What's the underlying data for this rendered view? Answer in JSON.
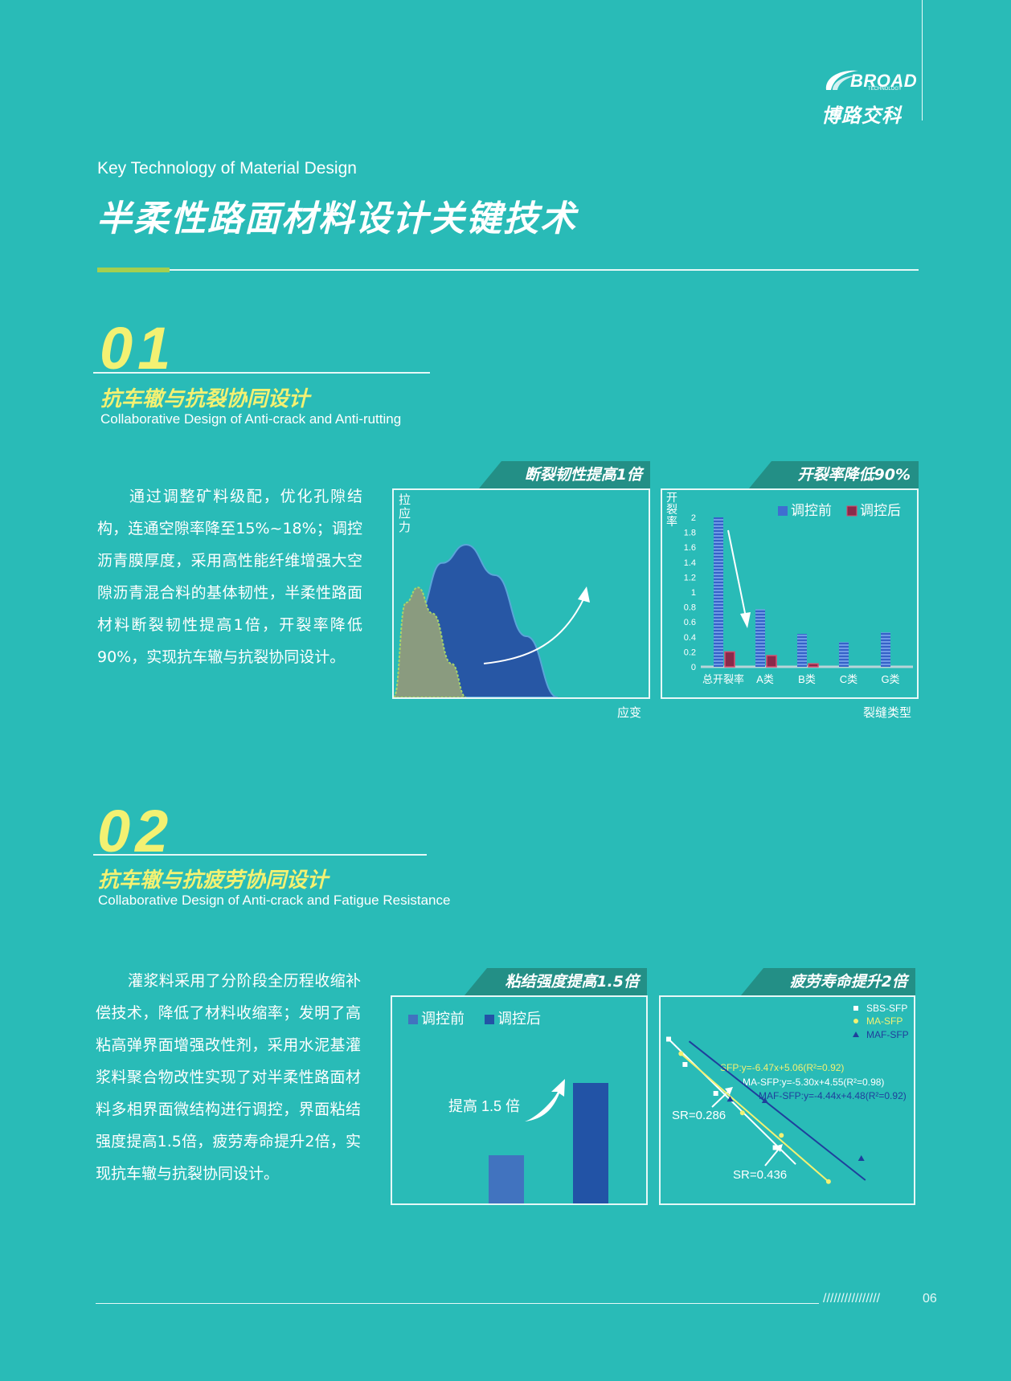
{
  "brand": {
    "name_en": "BROAD",
    "name_sub": "TECHNOLOGY",
    "name_cn": "博路交科"
  },
  "header": {
    "subtitle_en": "Key Technology of Material Design",
    "title_cn": "半柔性路面材料设计关键技术"
  },
  "section1": {
    "number": "01",
    "title_cn": "抗车辙与抗裂协同设计",
    "title_en": "Collaborative Design of Anti-crack and Anti-rutting",
    "paragraph": "通过调整矿料级配，优化孔隙结构，连通空隙率降至15%~18%；调控沥青膜厚度，采用高性能纤维增强大空隙沥青混合料的基体韧性，半柔性路面材料断裂韧性提高1倍，开裂率降低90%，实现抗车辙与抗裂协同设计。",
    "chart1": {
      "tag": "断裂韧性提高1倍",
      "ylabel": "拉应力",
      "xlabel": "应变",
      "colors": {
        "after": "#2757a5",
        "before": "#8a9b7f",
        "edge": "#a7d66a"
      }
    },
    "chart2": {
      "tag": "开裂率降低90%",
      "ylabel": "开裂率",
      "xlabel": "裂缝类型",
      "legend": [
        "调控前",
        "调控后"
      ]
    }
  },
  "section2": {
    "number": "02",
    "title_cn": "抗车辙与抗疲劳协同设计",
    "title_en": "Collaborative Design of Anti-crack and Fatigue Resistance",
    "paragraph": "灌浆料采用了分阶段全历程收缩补偿技术，降低了材料收缩率；发明了高粘高弹界面增强改性剂，采用水泥基灌浆料聚合物改性实现了对半柔性路面材料多相界面微结构进行调控，界面粘结强度提高1.5倍，疲劳寿命提升2倍，实现抗车辙与抗裂协同设计。",
    "chart3": {
      "tag": "粘结强度提高1.5倍",
      "legend": [
        "调控前",
        "调控后"
      ],
      "annotation": "提高 1.5 倍"
    },
    "chart4": {
      "tag": "疲劳寿命提升2倍",
      "legend": [
        "SBS-SFP",
        "MA-SFP",
        "MAF-SFP"
      ],
      "equations": [
        "SFP:y=-6.47x+5.06(R²=0.92)",
        "MA-SFP:y=-5.30x+4.55(R²=0.98)",
        "MAF-SFP:y=-4.44x+4.48(R²=0.92)"
      ],
      "sr1": "SR=0.286",
      "sr2": "SR=0.436"
    }
  },
  "footer": {
    "slashes": "////////////////",
    "page": "06"
  },
  "chart_data": [
    {
      "type": "area",
      "title": "断裂韧性提高1倍",
      "xlabel": "应变",
      "ylabel": "拉应力",
      "series": [
        {
          "name": "",
          "x": [
            0,
            0.1,
            0.2,
            0.3,
            0.42,
            0.55,
            0.68
          ],
          "values": [
            0,
            0.55,
            0.88,
            1.0,
            0.8,
            0.4,
            0
          ]
        },
        {
          "name": "",
          "x": [
            0,
            0.05,
            0.1,
            0.16,
            0.24,
            0.3
          ],
          "values": [
            0,
            0.62,
            0.72,
            0.55,
            0.22,
            0
          ]
        }
      ]
    },
    {
      "type": "bar",
      "title": "开裂率降低90%",
      "xlabel": "裂缝类型",
      "ylabel": "开裂率",
      "categories": [
        "总开裂率",
        "A类",
        "B类",
        "C类",
        "G类"
      ],
      "series": [
        {
          "name": "调控前",
          "values": [
            2.0,
            0.77,
            0.44,
            0.33,
            0.46
          ]
        },
        {
          "name": "调控后",
          "values": [
            0.2,
            0.15,
            0.04,
            0,
            0
          ]
        }
      ],
      "yticks": [
        "0",
        "0.2",
        "0.4",
        "0.6",
        "0.8",
        "1",
        "1.2",
        "1.4",
        "1.6",
        "1.8",
        "2"
      ],
      "ylim": [
        0,
        2
      ]
    },
    {
      "type": "bar",
      "title": "粘结强度提高1.5倍",
      "categories": [
        "调控前",
        "调控后"
      ],
      "values": [
        1.0,
        2.5
      ]
    },
    {
      "type": "scatter",
      "title": "疲劳寿命提升2倍",
      "series": [
        {
          "name": "SBS-SFP",
          "x": [
            0.0,
            0.08,
            0.23,
            0.52
          ],
          "values": [
            4.95,
            4.6,
            4.2,
            3.45
          ]
        },
        {
          "name": "MA-SFP",
          "x": [
            0.06,
            0.36,
            0.55,
            0.78
          ],
          "values": [
            4.75,
            3.93,
            3.62,
            2.98
          ]
        },
        {
          "name": "MAF-SFP",
          "x": [
            0.3,
            0.47,
            0.94
          ],
          "values": [
            4.12,
            4.1,
            3.3
          ]
        }
      ],
      "fits": [
        {
          "name": "SFP",
          "slope": -6.47,
          "intercept": 5.06,
          "r2": 0.92
        },
        {
          "name": "MA-SFP",
          "slope": -5.3,
          "intercept": 4.55,
          "r2": 0.98
        },
        {
          "name": "MAF-SFP",
          "slope": -4.44,
          "intercept": 4.48,
          "r2": 0.92
        }
      ]
    }
  ]
}
